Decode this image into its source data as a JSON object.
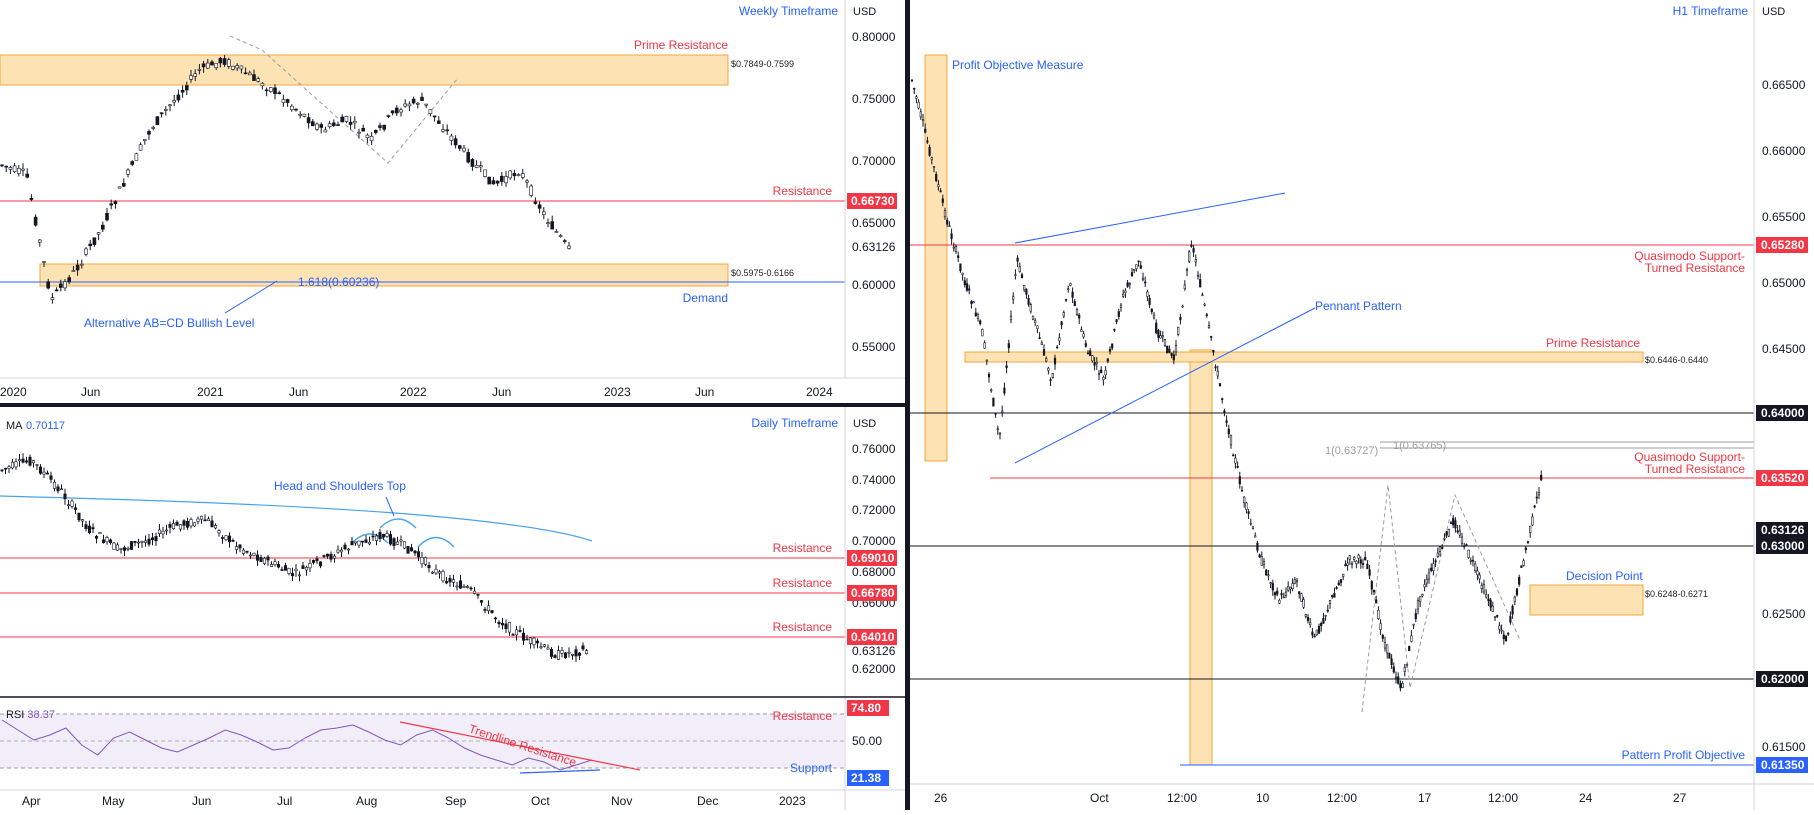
{
  "panels": {
    "weekly": {
      "title": "Weekly Timeframe",
      "currency": "USD",
      "y_ticks": [
        "0.80000",
        "0.75000",
        "0.70000",
        "0.65000",
        "0.60000",
        "0.55000"
      ],
      "x_ticks": [
        "2020",
        "Jun",
        "2021",
        "Jun",
        "2022",
        "Jun",
        "2023",
        "Jun",
        "2024"
      ],
      "price_label": "0.63126",
      "resistance_badge": "0.66730",
      "labels": {
        "prime_resistance": "Prime Resistance",
        "prime_zone": "$0.7849-0.7599",
        "resistance": "Resistance",
        "fib": "1.618(0.60236)",
        "demand_zone": "$0.5975-0.6166",
        "demand": "Demand",
        "abcd": "Alternative AB=CD Bullish Level"
      }
    },
    "daily": {
      "title": "Daily Timeframe",
      "currency": "USD",
      "ma_label": "MA",
      "ma_value": "0.70117",
      "y_ticks": [
        "0.76000",
        "0.74000",
        "0.72000",
        "0.70000",
        "0.68000",
        "0.66000",
        "0.62000"
      ],
      "price_label": "0.63126",
      "badges": [
        "0.69010",
        "0.66780",
        "0.64010"
      ],
      "labels": {
        "head_shoulders": "Head and Shoulders Top",
        "resistance": "Resistance"
      },
      "rsi": {
        "label": "RSI",
        "value": "38.37",
        "tick": "50.00",
        "upper_badge": "74.80",
        "lower_badge": "21.38",
        "resistance": "Resistance",
        "support": "Support",
        "trendline": "Trendline Resistance"
      },
      "x_ticks": [
        "Apr",
        "May",
        "Jun",
        "Jul",
        "Aug",
        "Sep",
        "Oct",
        "Nov",
        "Dec",
        "2023"
      ]
    },
    "h1": {
      "title": "H1 Timeframe",
      "currency": "USD",
      "y_ticks": [
        "0.66500",
        "0.66000",
        "0.65500",
        "0.65000",
        "0.64500",
        "0.62500",
        "0.61500"
      ],
      "badges": {
        "qm_top": "0.65280",
        "round_64": "0.64000",
        "qm_mid": "0.63520",
        "price": "0.63126",
        "round_63": "0.63000",
        "round_62": "0.62000",
        "pattern_obj": "0.61350"
      },
      "labels": {
        "profit_measure": "Profit Objective Measure",
        "pennant": "Pennant Pattern",
        "qm_support_1": "Quasimodo Support-",
        "qm_support_2": "Turned Resistance",
        "prime_resistance": "Prime Resistance",
        "prime_zone": "$0.6446-0.6440",
        "fib_a": "1(0.63727)",
        "fib_b": "1(0.63765)",
        "decision_point": "Decision Point",
        "decision_zone": "$0.6248-0.6271",
        "pattern_profit": "Pattern Profit Objective"
      },
      "x_ticks": [
        "26",
        "Oct",
        "12:00",
        "10",
        "12:00",
        "17",
        "12:00",
        "24",
        "27"
      ]
    }
  },
  "colors": {
    "zone_fill": "#fde2b4",
    "zone_stroke": "#f4a53c",
    "red": "#f23645",
    "blue": "#2962ff",
    "ma": "#4aa3e8",
    "rsi": "#7e57c2"
  },
  "chart_data": [
    {
      "type": "candlestick",
      "title": "Weekly Timeframe",
      "x": [
        "2020",
        "Jun",
        "2021",
        "Jun",
        "2022",
        "Jun",
        "2023",
        "Jun",
        "2024"
      ],
      "ylim": [
        0.53,
        0.81
      ],
      "price": 0.63126,
      "levels": {
        "resistance": 0.6673,
        "prime_resistance_zone": [
          0.7599,
          0.7849
        ],
        "demand_zone": [
          0.5975,
          0.6166
        ],
        "fib_1_618": 0.60236
      }
    },
    {
      "type": "candlestick",
      "title": "Daily Timeframe",
      "x": [
        "Apr",
        "May",
        "Jun",
        "Jul",
        "Aug",
        "Sep",
        "Oct",
        "Nov",
        "Dec",
        "2023"
      ],
      "ylim": [
        0.6,
        0.77
      ],
      "price": 0.63126,
      "ma": 0.70117,
      "levels": {
        "resistance": [
          0.6901,
          0.6678,
          0.6401
        ]
      },
      "rsi": {
        "value": 38.37,
        "upper": 74.8,
        "lower": 21.38
      }
    },
    {
      "type": "candlestick",
      "title": "H1 Timeframe",
      "x": [
        "26",
        "Oct",
        "12:00",
        "10",
        "12:00",
        "17",
        "12:00",
        "24",
        "27"
      ],
      "ylim": [
        0.611,
        0.668
      ],
      "price": 0.63126,
      "levels": {
        "quasimodo_top": 0.6528,
        "round_64": 0.64,
        "quasimodo_mid": 0.6352,
        "round_63": 0.63,
        "round_62": 0.62,
        "pattern_profit_objective": 0.6135,
        "prime_resistance_zone": [
          0.644,
          0.6446
        ],
        "decision_zone": [
          0.6248,
          0.6271
        ]
      }
    }
  ]
}
